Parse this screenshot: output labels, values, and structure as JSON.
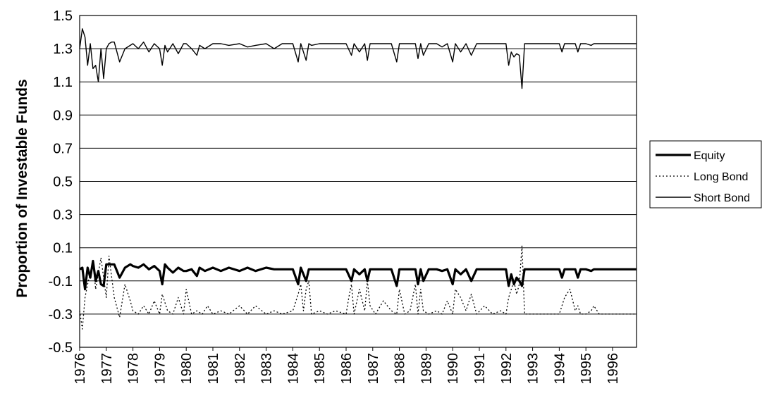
{
  "chart_data": {
    "type": "line",
    "title": "",
    "xlabel": "",
    "ylabel": "Proportion of Investable Funds",
    "ylim": [
      -0.5,
      1.5
    ],
    "xlim": [
      1976,
      1996.9
    ],
    "y_ticks": [
      "1.5",
      "1.3",
      "1.1",
      "0.9",
      "0.7",
      "0.5",
      "0.3",
      "0.1",
      "-0.1",
      "-0.3",
      "-0.5"
    ],
    "x_ticks": [
      "1976",
      "1977",
      "1978",
      "1979",
      "1980",
      "1981",
      "1982",
      "1983",
      "1984",
      "1985",
      "1986",
      "1987",
      "1988",
      "1989",
      "1990",
      "1991",
      "1992",
      "1993",
      "1994",
      "1995",
      "1996"
    ],
    "grid": "horizontal",
    "legend_position": "right",
    "series": [
      {
        "name": "Equity",
        "style": "solid-thick",
        "color": "#000000",
        "x": [
          1976.0,
          1976.1,
          1976.2,
          1976.3,
          1976.4,
          1976.5,
          1976.6,
          1976.7,
          1976.8,
          1976.9,
          1977.0,
          1977.1,
          1977.2,
          1977.3,
          1977.5,
          1977.7,
          1977.9,
          1978.0,
          1978.2,
          1978.4,
          1978.6,
          1978.8,
          1979.0,
          1979.1,
          1979.2,
          1979.3,
          1979.5,
          1979.7,
          1979.9,
          1980.0,
          1980.2,
          1980.4,
          1980.5,
          1980.7,
          1981.0,
          1981.3,
          1981.6,
          1982.0,
          1982.3,
          1982.6,
          1983.0,
          1983.3,
          1983.6,
          1984.0,
          1984.2,
          1984.3,
          1984.4,
          1984.5,
          1984.6,
          1984.7,
          1985.0,
          1985.3,
          1985.6,
          1986.0,
          1986.2,
          1986.3,
          1986.5,
          1986.7,
          1986.8,
          1986.9,
          1987.1,
          1987.4,
          1987.7,
          1987.9,
          1988.0,
          1988.2,
          1988.4,
          1988.6,
          1988.7,
          1988.8,
          1988.9,
          1989.1,
          1989.4,
          1989.6,
          1989.8,
          1990.0,
          1990.1,
          1990.3,
          1990.5,
          1990.7,
          1990.9,
          1991.2,
          1991.5,
          1991.8,
          1992.0,
          1992.1,
          1992.2,
          1992.3,
          1992.4,
          1992.5,
          1992.6,
          1992.7,
          1992.8,
          1993.0,
          1993.3,
          1993.6,
          1994.0,
          1994.1,
          1994.2,
          1994.4,
          1994.6,
          1994.7,
          1994.8,
          1995.0,
          1995.2,
          1995.3,
          1995.5,
          1995.8,
          1996.0,
          1996.4,
          1996.9
        ],
        "values": [
          -0.03,
          -0.02,
          -0.15,
          -0.02,
          -0.08,
          0.02,
          -0.1,
          -0.04,
          -0.12,
          -0.13,
          0.0,
          0.0,
          0.0,
          0.0,
          -0.08,
          -0.02,
          0.0,
          -0.01,
          -0.02,
          0.0,
          -0.03,
          -0.01,
          -0.04,
          -0.12,
          0.0,
          -0.02,
          -0.05,
          -0.02,
          -0.04,
          -0.04,
          -0.03,
          -0.07,
          -0.02,
          -0.04,
          -0.02,
          -0.04,
          -0.02,
          -0.04,
          -0.02,
          -0.04,
          -0.02,
          -0.03,
          -0.03,
          -0.03,
          -0.12,
          -0.02,
          -0.06,
          -0.1,
          -0.03,
          -0.03,
          -0.03,
          -0.03,
          -0.03,
          -0.03,
          -0.1,
          -0.03,
          -0.06,
          -0.03,
          -0.1,
          -0.03,
          -0.03,
          -0.03,
          -0.03,
          -0.13,
          -0.03,
          -0.03,
          -0.03,
          -0.03,
          -0.12,
          -0.03,
          -0.1,
          -0.03,
          -0.03,
          -0.04,
          -0.03,
          -0.12,
          -0.03,
          -0.06,
          -0.03,
          -0.1,
          -0.03,
          -0.03,
          -0.03,
          -0.03,
          -0.03,
          -0.13,
          -0.06,
          -0.12,
          -0.08,
          -0.1,
          -0.13,
          -0.03,
          -0.03,
          -0.03,
          -0.03,
          -0.03,
          -0.03,
          -0.08,
          -0.03,
          -0.03,
          -0.03,
          -0.08,
          -0.03,
          -0.03,
          -0.04,
          -0.03,
          -0.03,
          -0.03,
          -0.03,
          -0.03,
          -0.03
        ]
      },
      {
        "name": "Long Bond",
        "style": "dotted",
        "color": "#000000",
        "x": [
          1976.0,
          1976.1,
          1976.2,
          1976.3,
          1976.5,
          1976.6,
          1976.8,
          1977.0,
          1977.1,
          1977.3,
          1977.5,
          1977.7,
          1977.9,
          1978.0,
          1978.2,
          1978.4,
          1978.6,
          1978.8,
          1979.0,
          1979.1,
          1979.3,
          1979.5,
          1979.7,
          1979.9,
          1980.0,
          1980.2,
          1980.4,
          1980.6,
          1980.8,
          1981.0,
          1981.3,
          1981.6,
          1982.0,
          1982.3,
          1982.6,
          1983.0,
          1983.3,
          1983.6,
          1984.0,
          1984.2,
          1984.3,
          1984.4,
          1984.5,
          1984.6,
          1984.7,
          1985.0,
          1985.3,
          1985.6,
          1986.0,
          1986.1,
          1986.2,
          1986.3,
          1986.5,
          1986.7,
          1986.8,
          1986.9,
          1987.1,
          1987.4,
          1987.7,
          1987.9,
          1988.0,
          1988.2,
          1988.4,
          1988.6,
          1988.7,
          1988.8,
          1988.9,
          1989.1,
          1989.4,
          1989.6,
          1989.8,
          1990.0,
          1990.1,
          1990.3,
          1990.5,
          1990.7,
          1990.9,
          1991.2,
          1991.5,
          1991.8,
          1992.0,
          1992.1,
          1992.2,
          1992.3,
          1992.4,
          1992.5,
          1992.6,
          1992.7,
          1992.8,
          1993.0,
          1993.3,
          1993.6,
          1994.0,
          1994.1,
          1994.2,
          1994.4,
          1994.6,
          1994.7,
          1994.8,
          1995.0,
          1995.2,
          1995.3,
          1995.5,
          1995.8,
          1996.0,
          1996.4,
          1996.9
        ],
        "values": [
          -0.28,
          -0.39,
          -0.2,
          -0.12,
          0.02,
          -0.15,
          0.04,
          -0.2,
          0.05,
          -0.2,
          -0.32,
          -0.12,
          -0.22,
          -0.28,
          -0.3,
          -0.25,
          -0.3,
          -0.22,
          -0.3,
          -0.18,
          -0.28,
          -0.3,
          -0.2,
          -0.3,
          -0.15,
          -0.3,
          -0.28,
          -0.3,
          -0.25,
          -0.3,
          -0.28,
          -0.3,
          -0.25,
          -0.3,
          -0.25,
          -0.3,
          -0.28,
          -0.3,
          -0.28,
          -0.18,
          -0.12,
          -0.28,
          -0.15,
          -0.1,
          -0.3,
          -0.28,
          -0.3,
          -0.28,
          -0.3,
          -0.2,
          -0.12,
          -0.3,
          -0.15,
          -0.28,
          -0.1,
          -0.25,
          -0.3,
          -0.22,
          -0.28,
          -0.3,
          -0.15,
          -0.3,
          -0.28,
          -0.12,
          -0.3,
          -0.15,
          -0.28,
          -0.3,
          -0.28,
          -0.3,
          -0.22,
          -0.3,
          -0.15,
          -0.2,
          -0.28,
          -0.18,
          -0.3,
          -0.25,
          -0.3,
          -0.28,
          -0.3,
          -0.2,
          -0.15,
          -0.1,
          -0.18,
          -0.12,
          0.11,
          -0.3,
          -0.3,
          -0.3,
          -0.3,
          -0.3,
          -0.3,
          -0.25,
          -0.2,
          -0.15,
          -0.28,
          -0.25,
          -0.3,
          -0.3,
          -0.28,
          -0.25,
          -0.3,
          -0.3,
          -0.3,
          -0.3,
          -0.3
        ]
      },
      {
        "name": "Short Bond",
        "style": "solid-thin",
        "color": "#000000",
        "x": [
          1976.0,
          1976.1,
          1976.2,
          1976.3,
          1976.4,
          1976.5,
          1976.6,
          1976.7,
          1976.8,
          1976.9,
          1977.0,
          1977.1,
          1977.2,
          1977.3,
          1977.5,
          1977.7,
          1977.9,
          1978.0,
          1978.2,
          1978.4,
          1978.6,
          1978.8,
          1979.0,
          1979.1,
          1979.2,
          1979.3,
          1979.5,
          1979.7,
          1979.9,
          1980.0,
          1980.2,
          1980.4,
          1980.5,
          1980.7,
          1981.0,
          1981.3,
          1981.6,
          1982.0,
          1982.3,
          1982.6,
          1983.0,
          1983.3,
          1983.6,
          1984.0,
          1984.2,
          1984.3,
          1984.4,
          1984.5,
          1984.6,
          1984.7,
          1985.0,
          1985.3,
          1985.6,
          1986.0,
          1986.2,
          1986.3,
          1986.5,
          1986.7,
          1986.8,
          1986.9,
          1987.1,
          1987.4,
          1987.7,
          1987.9,
          1988.0,
          1988.2,
          1988.4,
          1988.6,
          1988.7,
          1988.8,
          1988.9,
          1989.1,
          1989.4,
          1989.6,
          1989.8,
          1990.0,
          1990.1,
          1990.3,
          1990.5,
          1990.7,
          1990.9,
          1991.2,
          1991.5,
          1991.8,
          1992.0,
          1992.1,
          1992.2,
          1992.3,
          1992.4,
          1992.5,
          1992.6,
          1992.7,
          1992.8,
          1993.0,
          1993.3,
          1993.6,
          1994.0,
          1994.1,
          1994.2,
          1994.4,
          1994.6,
          1994.7,
          1994.8,
          1995.0,
          1995.2,
          1995.3,
          1995.5,
          1995.8,
          1996.0,
          1996.4,
          1996.9
        ],
        "values": [
          1.3,
          1.42,
          1.37,
          1.2,
          1.33,
          1.18,
          1.2,
          1.1,
          1.3,
          1.12,
          1.3,
          1.33,
          1.34,
          1.34,
          1.22,
          1.3,
          1.32,
          1.33,
          1.3,
          1.34,
          1.28,
          1.33,
          1.3,
          1.2,
          1.32,
          1.28,
          1.33,
          1.27,
          1.33,
          1.33,
          1.3,
          1.26,
          1.32,
          1.3,
          1.33,
          1.33,
          1.32,
          1.33,
          1.31,
          1.32,
          1.33,
          1.3,
          1.33,
          1.33,
          1.22,
          1.33,
          1.28,
          1.23,
          1.33,
          1.32,
          1.33,
          1.33,
          1.33,
          1.33,
          1.26,
          1.33,
          1.28,
          1.33,
          1.23,
          1.33,
          1.33,
          1.33,
          1.33,
          1.22,
          1.33,
          1.33,
          1.33,
          1.33,
          1.24,
          1.33,
          1.26,
          1.33,
          1.33,
          1.31,
          1.33,
          1.22,
          1.33,
          1.28,
          1.33,
          1.26,
          1.33,
          1.33,
          1.33,
          1.33,
          1.33,
          1.2,
          1.28,
          1.25,
          1.27,
          1.26,
          1.06,
          1.33,
          1.33,
          1.33,
          1.33,
          1.33,
          1.33,
          1.28,
          1.33,
          1.33,
          1.33,
          1.28,
          1.33,
          1.33,
          1.32,
          1.33,
          1.33,
          1.33,
          1.33,
          1.33,
          1.33
        ]
      }
    ]
  }
}
